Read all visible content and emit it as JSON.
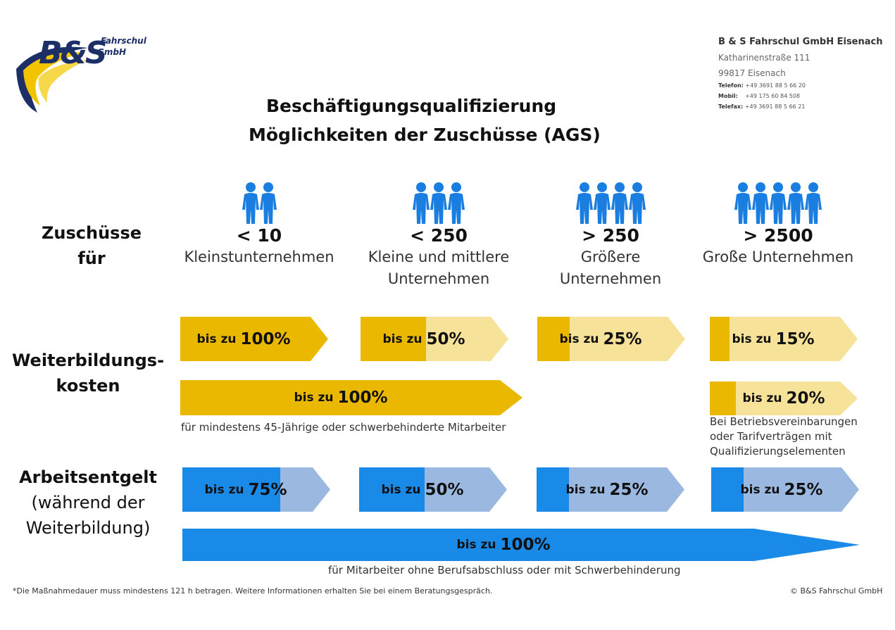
{
  "logo": {
    "brand": "B&S",
    "line1": "Fahrschul",
    "line2": "GmbH"
  },
  "company": {
    "name": "B & S Fahrschul GmbH Eisenach",
    "street": "Katharinenstraße 111",
    "city": "99817 Eisenach",
    "phone_label": "Telefon:",
    "phone": "+49 3691 88 5 66 20",
    "mobile_label": "Mobil:",
    "mobile": "+49 175 60 84 508",
    "fax_label": "Telefax:",
    "fax": "+49 3691 88 5 66 21"
  },
  "title": {
    "line1": "Beschäftigungsqualifizierung",
    "line2": "Möglichkeiten der Zuschüsse (AGS)"
  },
  "rows": {
    "zuschuesse": {
      "line1": "Zuschüsse",
      "line2": "für"
    },
    "weiterbildung": {
      "line1": "Weiterbildungs-",
      "line2": "kosten"
    },
    "arbeitsentgelt": {
      "line1": "Arbeitsentgelt",
      "line2": "(während der",
      "line3": "Weiterbildung)"
    }
  },
  "categories": [
    {
      "count": "< 10",
      "name_line1": "Kleinstunternehmen",
      "name_line2": "",
      "people": 2
    },
    {
      "count": "< 250",
      "name_line1": "Kleine und mittlere",
      "name_line2": "Unternehmen",
      "people": 3
    },
    {
      "count": "> 250",
      "name_line1": "Größere",
      "name_line2": "Unternehmen",
      "people": 4
    },
    {
      "count": "> 2500",
      "name_line1": "Große Unternehmen",
      "name_line2": "",
      "people": 5
    }
  ],
  "prefix": "bis zu",
  "weiterbildung_arrows": [
    {
      "pct": "100%",
      "fill": 1.0
    },
    {
      "pct": "50%",
      "fill": 0.5
    },
    {
      "pct": "25%",
      "fill": 0.25
    },
    {
      "pct": "15%",
      "fill": 0.15
    }
  ],
  "weiterbildung_long": {
    "pct": "100%",
    "note": "für mindestens 45-Jährige oder schwerbehinderte Mitarbeiter"
  },
  "weiterbildung_extra": {
    "pct": "20%",
    "fill": 0.2,
    "note_line1": "Bei Betriebsvereinbarungen",
    "note_line2": "oder Tarifverträgen mit",
    "note_line3": "Qualifizierungselementen"
  },
  "entgelt_arrows": [
    {
      "pct": "75%",
      "fill": 0.75
    },
    {
      "pct": "50%",
      "fill": 0.5
    },
    {
      "pct": "25%",
      "fill": 0.25
    },
    {
      "pct": "25%",
      "fill": 0.25
    }
  ],
  "entgelt_long": {
    "pct": "100%",
    "note": "für Mitarbeiter ohne Berufsabschluss oder mit Schwerbehinderung"
  },
  "footer": {
    "left": "*Die Maßnahmedauer muss mindestens 121 h betragen. Weitere Informationen erhalten Sie bei einem Beratungsgespräch.",
    "right": "© B&S Fahrschul GmbH"
  },
  "colors": {
    "yellow_dark": "#ebb800",
    "yellow_light": "#f7e29a",
    "blue_dark": "#1a8ae8",
    "blue_light": "#9bb9e0",
    "people": "#1a7de0",
    "logo_navy": "#1c2f66"
  }
}
